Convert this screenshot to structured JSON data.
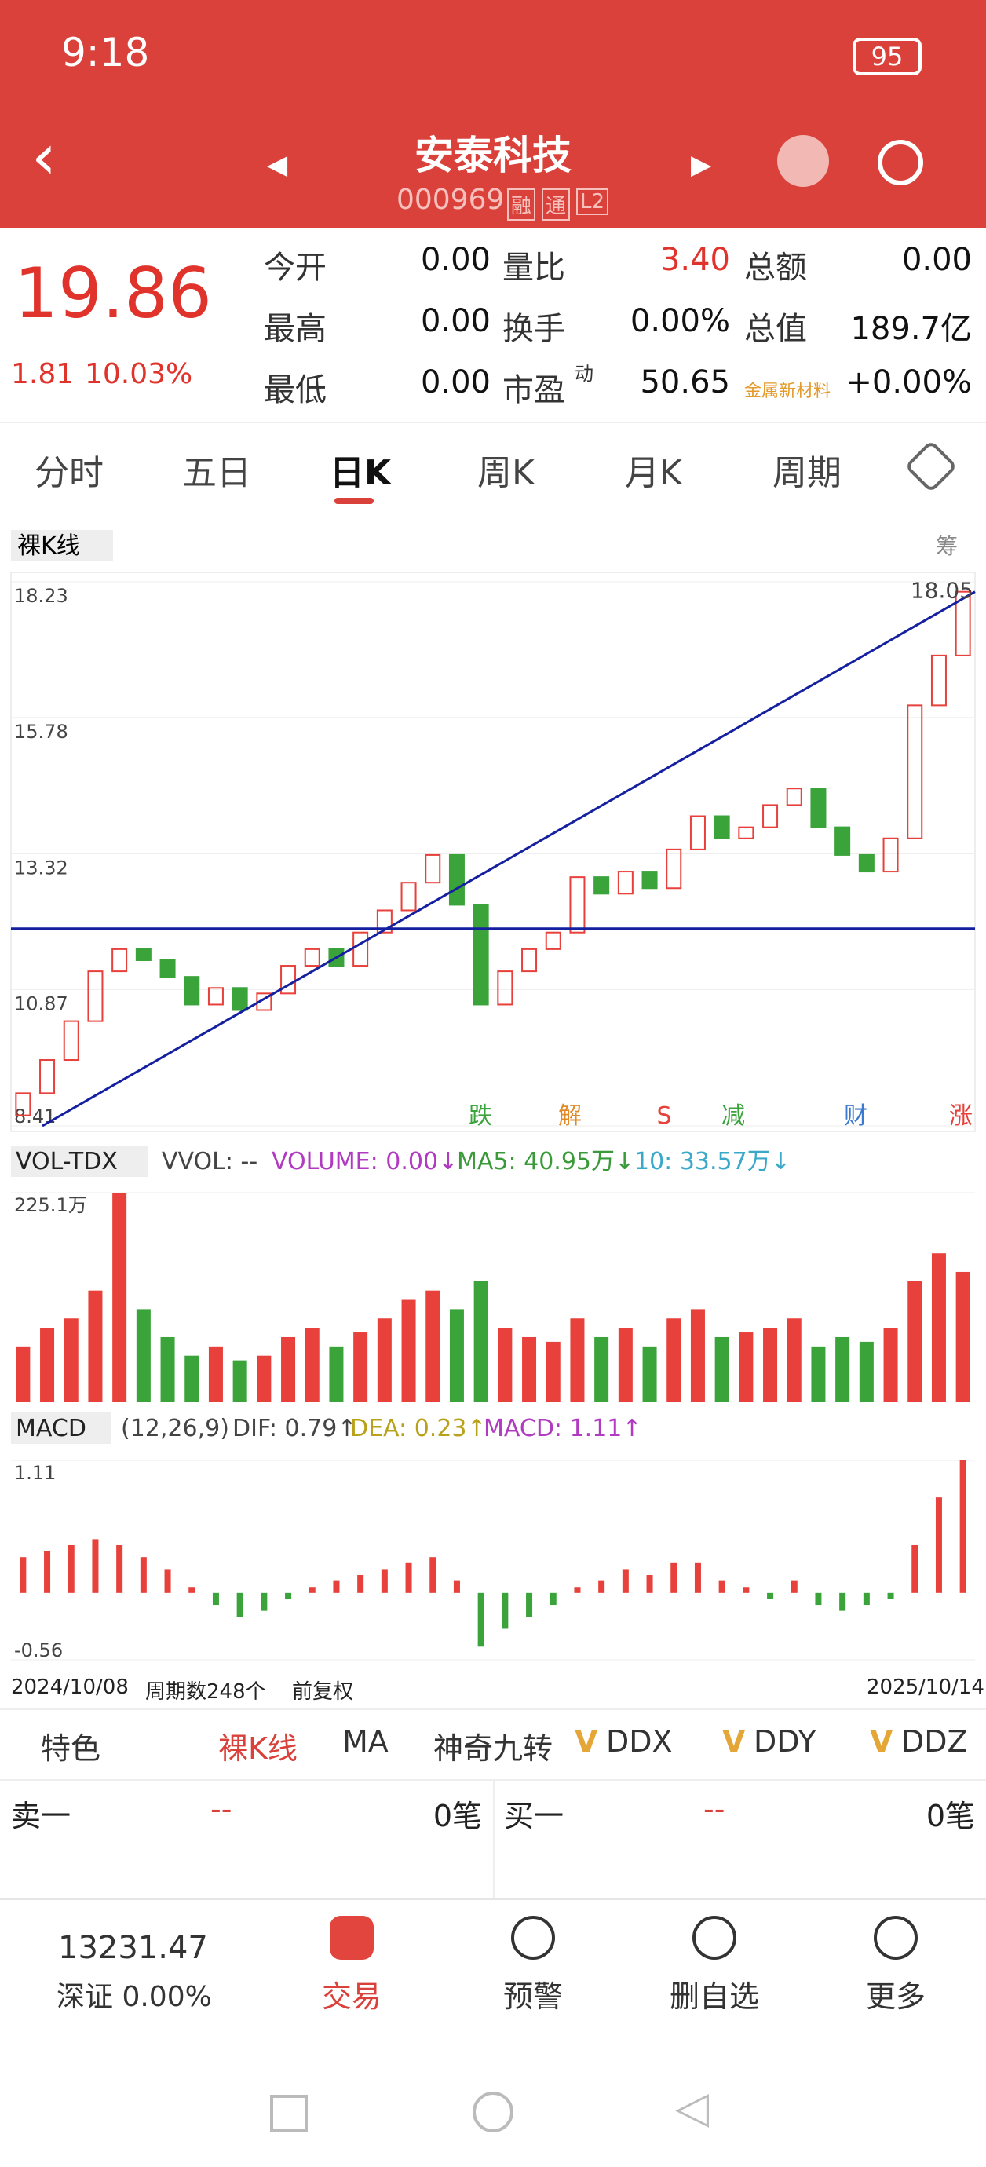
{
  "status": {
    "time": "9:18",
    "battery": "95"
  },
  "header": {
    "title": "安泰科技",
    "code": "000969",
    "badges": [
      "融",
      "通",
      "L2"
    ]
  },
  "quote": {
    "price": "19.86",
    "change": "1.81",
    "pct": "10.03%",
    "fields": [
      {
        "label": "今开",
        "value": "0.00"
      },
      {
        "label": "量比",
        "value": "3.40"
      },
      {
        "label": "总额",
        "value": "0.00"
      },
      {
        "label": "最高",
        "value": "0.00"
      },
      {
        "label": "换手",
        "value": "0.00%"
      },
      {
        "label": "总值",
        "value": "189.7亿"
      },
      {
        "label": "最低",
        "value": "0.00"
      },
      {
        "label": "市盈",
        "sup": "动",
        "value": "50.65"
      },
      {
        "label": "金属新材料",
        "value": "+0.00%"
      }
    ]
  },
  "tabs": {
    "items": [
      "分时",
      "五日",
      "日K",
      "周K",
      "月K",
      "周期"
    ],
    "active": 2
  },
  "chart_data": {
    "type": "candlestick",
    "mode": "裸K线",
    "side": "筹",
    "open": [
      8.6,
      9.0,
      9.6,
      10.3,
      11.2,
      11.6,
      11.4,
      11.1,
      10.6,
      10.9,
      10.5,
      10.8,
      11.3,
      11.6,
      11.3,
      11.9,
      12.3,
      12.8,
      13.3,
      12.4,
      10.6,
      11.2,
      11.6,
      11.9,
      12.9,
      12.6,
      13.0,
      12.7,
      13.4,
      14.0,
      13.6,
      13.8,
      14.2,
      14.5,
      13.8,
      13.3,
      13.0,
      13.6,
      16.0,
      16.9
    ],
    "close": [
      9.0,
      9.6,
      10.3,
      11.2,
      11.6,
      11.4,
      11.1,
      10.6,
      10.9,
      10.5,
      10.8,
      11.3,
      11.6,
      11.3,
      11.9,
      12.3,
      12.8,
      13.3,
      12.4,
      10.6,
      11.2,
      11.6,
      11.9,
      12.9,
      12.6,
      13.0,
      12.7,
      13.4,
      14.0,
      13.6,
      13.8,
      14.2,
      14.5,
      13.8,
      13.3,
      13.0,
      13.6,
      16.0,
      16.9,
      18.05
    ],
    "ylim": [
      8.41,
      18.23
    ],
    "yticks": [
      18.23,
      15.78,
      13.32,
      10.87,
      8.41
    ],
    "hline": 11.97,
    "trendline": [
      8.41,
      18.05
    ],
    "last_label": 18.05,
    "events": [
      "跌",
      "解",
      "S",
      "减",
      "财",
      "涨"
    ],
    "volume": {
      "name": "VOL-TDX",
      "vvol": "VVOL: --",
      "volume": "VOLUME: 0.00↓",
      "ma5": "MA5: 40.95万↓",
      "ma10": "10: 33.57万↓",
      "values": [
        60,
        80,
        90,
        120,
        225.1,
        100,
        70,
        50,
        60,
        45,
        50,
        70,
        80,
        60,
        75,
        90,
        110,
        120,
        100,
        130,
        80,
        70,
        65,
        90,
        70,
        80,
        60,
        90,
        100,
        70,
        75,
        80,
        90,
        60,
        70,
        65,
        80,
        130,
        160,
        140
      ],
      "ylim": [
        0,
        225.1
      ],
      "yticks": [
        {
          "value": 225.1,
          "label": "225.1万"
        }
      ]
    },
    "macd": {
      "name": "MACD",
      "params": "(12,26,9)",
      "dif": "DIF: 0.79↑",
      "dea": "DEA: 0.23↑",
      "macd": "MACD: 1.11↑",
      "values": [
        0.3,
        0.35,
        0.4,
        0.45,
        0.4,
        0.3,
        0.2,
        0.05,
        -0.1,
        -0.2,
        -0.15,
        -0.05,
        0.05,
        0.1,
        0.15,
        0.2,
        0.25,
        0.3,
        0.1,
        -0.45,
        -0.3,
        -0.2,
        -0.1,
        0.05,
        0.1,
        0.2,
        0.15,
        0.25,
        0.25,
        0.1,
        0.05,
        -0.05,
        0.1,
        -0.1,
        -0.15,
        -0.1,
        -0.05,
        0.4,
        0.8,
        1.11
      ],
      "ylim": [
        -0.56,
        1.11
      ],
      "yticks": [
        1.11,
        -0.56
      ]
    }
  },
  "dates": {
    "start": "2024/10/08",
    "count": "周期数248个",
    "adjust": "前复权",
    "end": "2025/10/14"
  },
  "toolbar": {
    "items": [
      "特色",
      "裸K线",
      "MA",
      "神奇九转",
      "DDX",
      "DDY",
      "DDZ"
    ],
    "v": "V"
  },
  "order": {
    "sell": [
      "卖一",
      "--",
      "0笔"
    ],
    "buy": [
      "买一",
      "--",
      "0笔"
    ]
  },
  "nav": {
    "index": "13231.47",
    "market": "深证 0.00%",
    "items": [
      "交易",
      "预警",
      "删自选",
      "更多"
    ]
  }
}
